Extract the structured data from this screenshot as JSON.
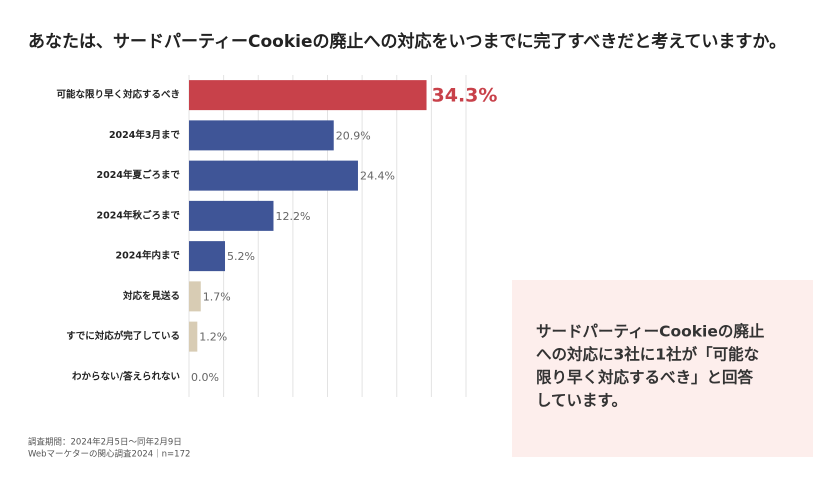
{
  "chart_data": {
    "type": "hbar",
    "title": "あなたは、サードパーティーCookieの廃止への対応をいつまでに完了すべきだと考えていますか。",
    "categories": [
      "可能な限り早く対応するべき",
      "2024年3月まで",
      "2024年夏ごろまで",
      "2024年秋ごろまで",
      "2024年内まで",
      "対応を見送る",
      "すでに対応が完了している",
      "わからない/答えられない"
    ],
    "values": [
      34.3,
      20.9,
      24.4,
      12.2,
      5.2,
      1.7,
      1.2,
      0.0
    ],
    "value_labels": [
      "34.3%",
      "20.9%",
      "24.4%",
      "12.2%",
      "5.2%",
      "1.7%",
      "1.2%",
      "0.0%"
    ],
    "colors": [
      "#c8414a",
      "#3f5597",
      "#3f5597",
      "#3f5597",
      "#3f5597",
      "#d8ccb4",
      "#d8ccb4",
      "#d8ccb4"
    ],
    "highlight": 0,
    "xlim": [
      0,
      40
    ],
    "grid": true,
    "callout": [
      "サードパーティーCookieの廃止",
      "への対応に3社に1社が「可能な",
      "限り早く対応するべき」と回答",
      "しています。"
    ],
    "notes": [
      "調査期間：2024年2月5日〜同年2月9日",
      "Webマーケターの関心調査2024｜n=172"
    ]
  }
}
